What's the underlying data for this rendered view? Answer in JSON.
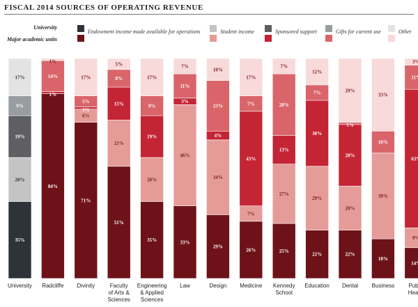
{
  "chart_data": {
    "type": "bar",
    "stacked": true,
    "title": "FISCAL 2014 SOURCES OF OPERATING REVENUE",
    "legend_header_university": "University",
    "legend_header_units": "Major academic units",
    "legend_placement": "top",
    "ylim": [
      0,
      100
    ],
    "categories": [
      "University",
      "Radcliffe",
      "Divinity",
      "Faculty of Arts & Sciences",
      "Engineering & Applied Sciences",
      "Law",
      "Design",
      "Medicine",
      "Kennedy School",
      "Education",
      "Dental",
      "Business",
      "Public Health"
    ],
    "category_lines": [
      [
        "University"
      ],
      [
        "Radcliffe"
      ],
      [
        "Divinity"
      ],
      [
        "Faculty",
        "of Arts &",
        "Sciences"
      ],
      [
        "Engineering",
        "& Applied",
        "Sciences"
      ],
      [
        "Law"
      ],
      [
        "Design"
      ],
      [
        "Medicine"
      ],
      [
        "Kennedy",
        "School"
      ],
      [
        "Education"
      ],
      [
        "Dental"
      ],
      [
        "Business"
      ],
      [
        "Public",
        "Health"
      ]
    ],
    "series": [
      {
        "name": "Endowment income made available for operations",
        "color_university": "#2d3338",
        "color_units": "#6e1219",
        "values": [
          35,
          84,
          71,
          51,
          35,
          33,
          29,
          26,
          25,
          22,
          22,
          18,
          14
        ]
      },
      {
        "name": "Student income",
        "color_university": "#c4c4c4",
        "color_units": "#e59c98",
        "values": [
          20,
          0,
          6,
          21,
          20,
          46,
          34,
          7,
          27,
          29,
          20,
          39,
          9
        ]
      },
      {
        "name": "Sponsored support",
        "color_university": "#5e5e63",
        "color_units": "#c42534",
        "values": [
          19,
          1,
          1,
          15,
          19,
          3,
          4,
          43,
          13,
          30,
          28,
          0,
          63
        ]
      },
      {
        "name": "Gifts for current use",
        "color_university": "#9a9da0",
        "color_units": "#d9656a",
        "values": [
          9,
          14,
          5,
          8,
          9,
          11,
          23,
          7,
          28,
          7,
          1,
          10,
          11
        ]
      },
      {
        "name": "Other",
        "color_university": "#e3e3e3",
        "color_units": "#f8dada",
        "values": [
          17,
          1,
          17,
          5,
          17,
          7,
          10,
          17,
          7,
          12,
          29,
          33,
          3
        ]
      }
    ],
    "segment_labels": [
      [
        "35%",
        "84%",
        "71%",
        "51%",
        "35%",
        "33%",
        "29%",
        "26%",
        "25%",
        "22%",
        "22%",
        "18%",
        "14%"
      ],
      [
        "20%",
        "",
        "6%",
        "21%",
        "20%",
        "46%",
        "34%",
        "7%",
        "27%",
        "29%",
        "20%",
        "39%",
        "9%"
      ],
      [
        "19%",
        "1%",
        "1%",
        "15%",
        "19%",
        "3%",
        "4%",
        "43%",
        "13%",
        "30%",
        "28%",
        "",
        "63%"
      ],
      [
        "9%",
        "14%",
        "5%",
        "8%",
        "9%",
        "11%",
        "23%",
        "7%",
        "28%",
        "7%",
        "1%",
        "10%",
        "11%"
      ],
      [
        "17%",
        "1%",
        "17%",
        "5%",
        "17%",
        "7%",
        "10%",
        "17%",
        "7%",
        "12%",
        "29%",
        "33%",
        "3%"
      ]
    ]
  }
}
